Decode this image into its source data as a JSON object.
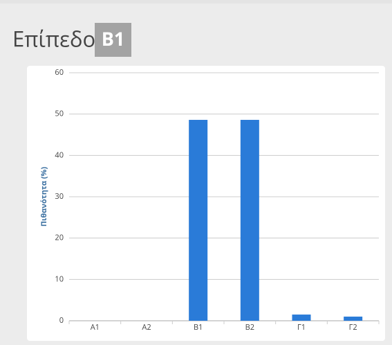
{
  "header": {
    "title": "Επίπεδο",
    "badge": "B1"
  },
  "chart_data": {
    "type": "bar",
    "y_label": "Πιθανότητα (%)",
    "categories": [
      "A1",
      "A2",
      "B1",
      "B2",
      "Γ1",
      "Γ2"
    ],
    "values": [
      0,
      0,
      48.6,
      48.6,
      1.5,
      1.0
    ],
    "color": "#2a7bd8",
    "ylim": [
      0,
      60
    ],
    "yticks": [
      0,
      10,
      20,
      30,
      40,
      50,
      60
    ],
    "grid": true
  }
}
